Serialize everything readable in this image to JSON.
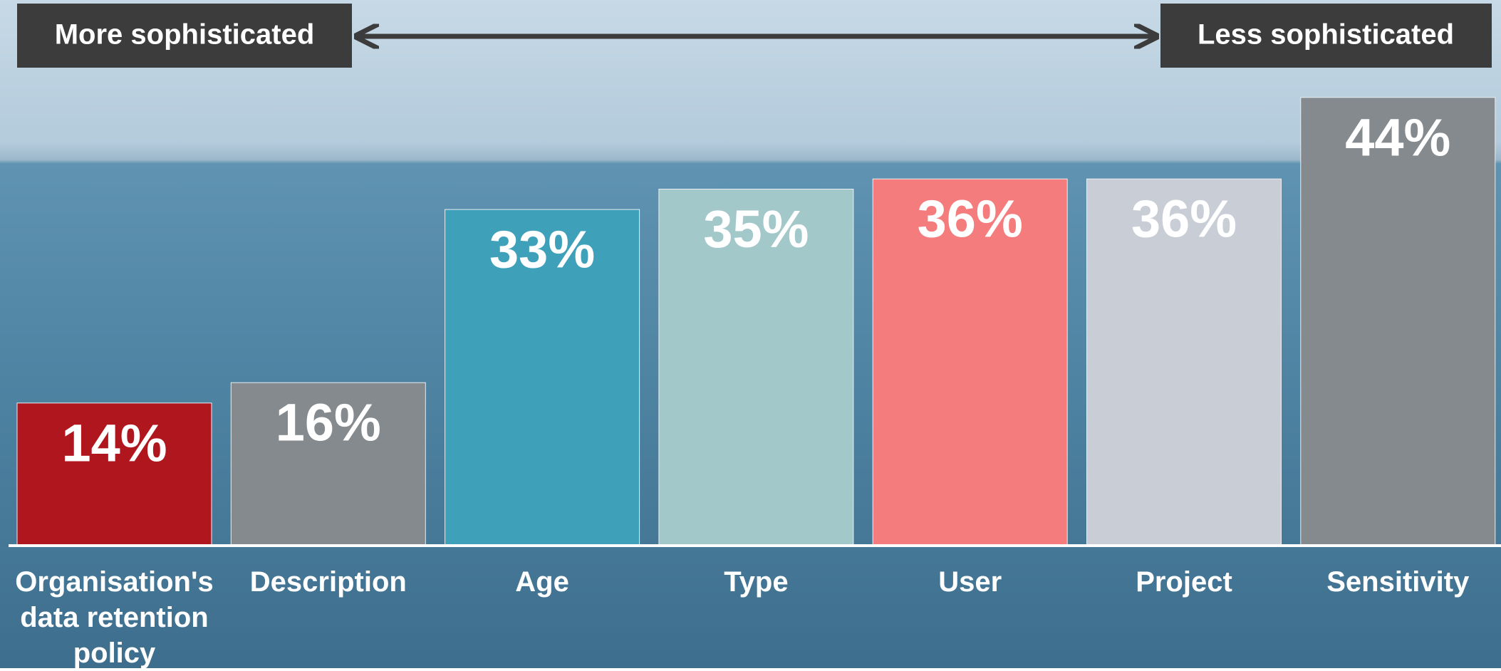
{
  "chart_data": {
    "type": "bar",
    "annotations": [
      "More sophisticated",
      "Less sophisticated"
    ],
    "categories": [
      "Organisation's data retention policy",
      "Description",
      "Age",
      "Type",
      "User",
      "Project",
      "Sensitivity"
    ],
    "values": [
      14,
      16,
      33,
      35,
      36,
      36,
      44
    ],
    "value_labels": [
      "14%",
      "16%",
      "33%",
      "35%",
      "36%",
      "36%",
      "44%"
    ],
    "colors": [
      "#b0161e",
      "#848a8d",
      "#3fa1b9",
      "#a3c8ca",
      "#f47c7c",
      "#c9ced6",
      "#848a8d"
    ]
  }
}
